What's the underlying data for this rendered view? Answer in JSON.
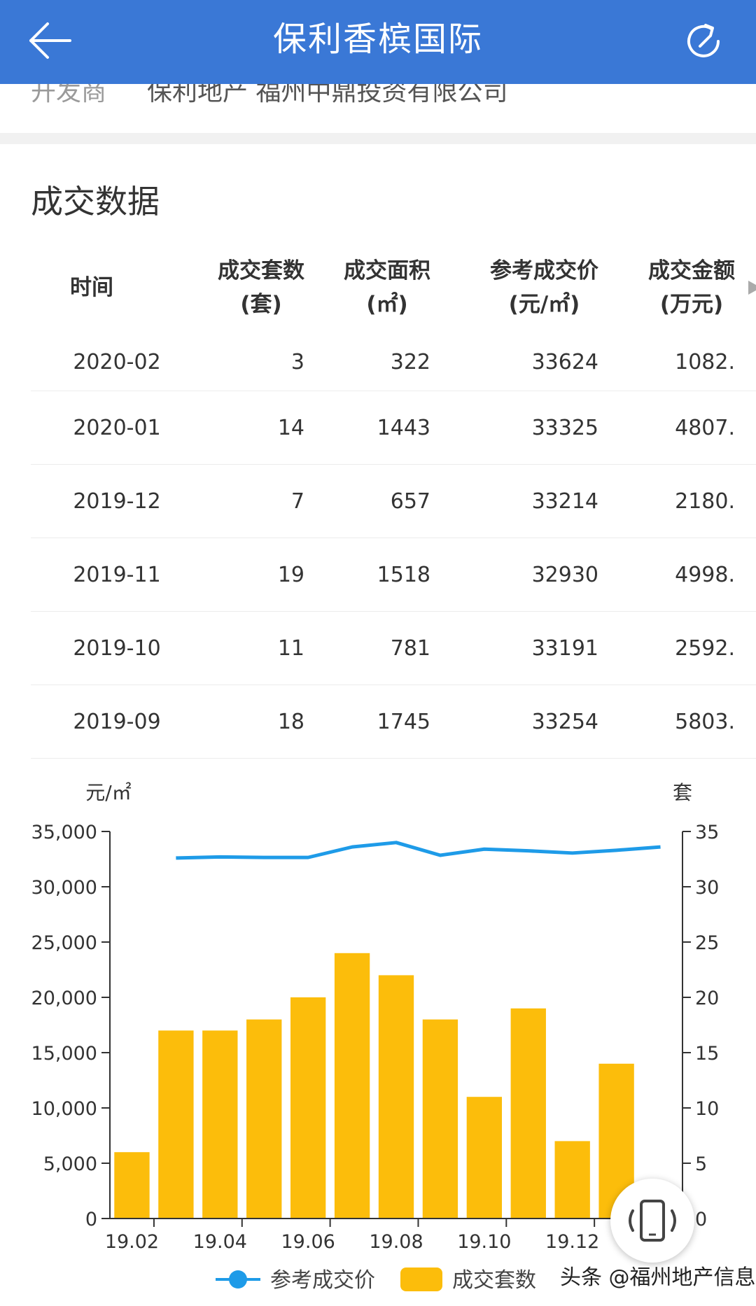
{
  "header": {
    "title": "保利香槟国际",
    "back_icon": "arrow-left-icon",
    "refresh_icon": "refresh-icon"
  },
  "developer": {
    "label": "开发商",
    "value": "保利地产 福州中鼎投资有限公司"
  },
  "section": {
    "title": "成交数据"
  },
  "table": {
    "headers": [
      {
        "l1": "时间",
        "l2": ""
      },
      {
        "l1": "成交套数",
        "l2": "(套)"
      },
      {
        "l1": "成交面积",
        "l2": "(㎡)"
      },
      {
        "l1": "参考成交价",
        "l2": "(元/㎡)"
      },
      {
        "l1": "成交金额",
        "l2": "(万元)"
      }
    ],
    "rows": [
      [
        "2020-02",
        "3",
        "322",
        "33624",
        "1082."
      ],
      [
        "2020-01",
        "14",
        "1443",
        "33325",
        "4807."
      ],
      [
        "2019-12",
        "7",
        "657",
        "33214",
        "2180."
      ],
      [
        "2019-11",
        "19",
        "1518",
        "32930",
        "4998."
      ],
      [
        "2019-10",
        "11",
        "781",
        "33191",
        "2592."
      ],
      [
        "2019-09",
        "18",
        "1745",
        "33254",
        "5803."
      ]
    ]
  },
  "chart_data": {
    "type": "bar",
    "left_axis_unit": "元/㎡",
    "right_axis_unit": "套",
    "left_ticks": [
      "0",
      "5,000",
      "10,000",
      "15,000",
      "20,000",
      "25,000",
      "30,000",
      "35,000"
    ],
    "right_ticks": [
      "0",
      "5",
      "10",
      "15",
      "20",
      "25",
      "30",
      "35"
    ],
    "ylim_left": [
      0,
      35000
    ],
    "ylim_right": [
      0,
      35
    ],
    "x_tick_labels": [
      "19.02",
      "19.04",
      "19.06",
      "19.08",
      "19.10",
      "19.12"
    ],
    "categories": [
      "19.02",
      "19.03",
      "19.04",
      "19.05",
      "19.06",
      "19.07",
      "19.08",
      "19.09",
      "19.10",
      "19.11",
      "19.12",
      "20.01",
      "20.02"
    ],
    "series": [
      {
        "name": "参考成交价",
        "kind": "line",
        "axis": "left",
        "color": "#1e9be8",
        "values": [
          null,
          32600,
          32700,
          32650,
          32650,
          33600,
          34000,
          32850,
          33400,
          33250,
          33050,
          33300,
          33600
        ]
      },
      {
        "name": "成交套数",
        "kind": "bar",
        "axis": "right",
        "color": "#fcbd0b",
        "values": [
          6,
          17,
          17,
          18,
          20,
          24,
          22,
          18,
          11,
          19,
          7,
          14,
          null
        ]
      }
    ],
    "grid": false,
    "legend": "bottom-center"
  },
  "watermark": "头条 @福州地产信息",
  "float_button_icon": "rotate-device-icon"
}
